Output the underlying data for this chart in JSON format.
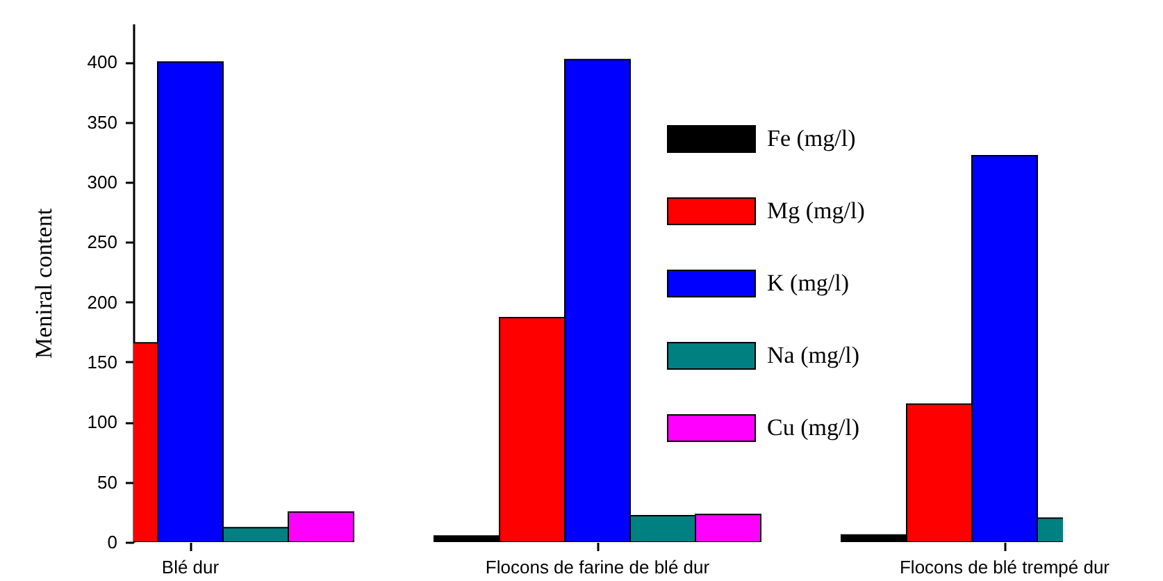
{
  "chart_data": {
    "type": "bar",
    "ylabel": "Meniral content",
    "categories": [
      "Blé dur",
      "Flocons de farine de blé dur",
      "Flocons de blé trempé dur"
    ],
    "series": [
      {
        "name": "Fe (mg/l)",
        "color": "#000000",
        "values": [
          null,
          5,
          6
        ]
      },
      {
        "name": "Mg (mg/l)",
        "color": "#ff0000",
        "values": [
          166,
          187,
          115
        ]
      },
      {
        "name": "K (mg/l)",
        "color": "#0000ff",
        "values": [
          400,
          402,
          322
        ]
      },
      {
        "name": "Na (mg/l)",
        "color": "#008080",
        "values": [
          12,
          22,
          20
        ]
      },
      {
        "name": "Cu (mg/l)",
        "color": "#ff00ff",
        "values": [
          25,
          23,
          null
        ]
      }
    ],
    "ylim": [
      0,
      432
    ],
    "yticks": [
      0,
      50,
      100,
      150,
      200,
      250,
      300,
      350,
      400
    ],
    "grid": false,
    "legend": "top right"
  }
}
